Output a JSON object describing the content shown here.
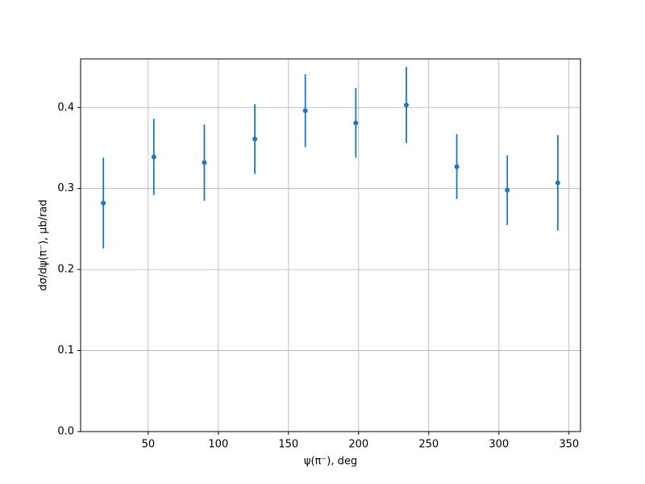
{
  "chart_data": {
    "type": "errorbar",
    "xlabel": "ψ(π⁻), deg",
    "ylabel": "dσ/dψ(π⁻), μb/rad",
    "x": [
      18,
      54,
      90,
      126,
      162,
      198,
      234,
      270,
      306,
      342
    ],
    "series": [
      {
        "color": "#1f77b4",
        "values": [
          0.282,
          0.339,
          0.332,
          0.361,
          0.396,
          0.381,
          0.403,
          0.327,
          0.298,
          0.307
        ],
        "errors": [
          0.056,
          0.047,
          0.047,
          0.043,
          0.045,
          0.043,
          0.047,
          0.04,
          0.043,
          0.059
        ]
      }
    ],
    "xlim": [
      1.8,
      358.2
    ],
    "ylim": [
      0,
      0.46
    ],
    "xticks": [
      50,
      100,
      150,
      200,
      250,
      300,
      350
    ],
    "yticks": [
      {
        "value": 0,
        "label": "0.0"
      },
      0.1,
      0.2,
      0.3,
      0.4
    ],
    "grid": true
  }
}
